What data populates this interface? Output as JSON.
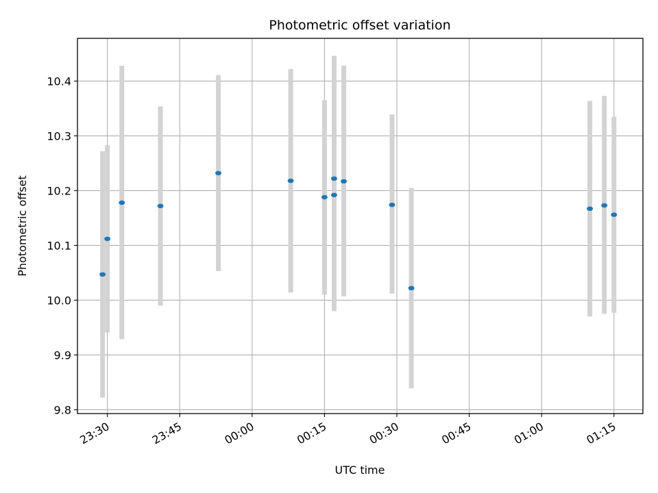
{
  "chart_data": {
    "type": "scatter",
    "title": "Photometric offset variation",
    "xlabel": "UTC time",
    "ylabel": "Photometric offset",
    "x_ticks": [
      "23:30",
      "23:45",
      "00:00",
      "00:15",
      "00:30",
      "00:45",
      "01:00",
      "01:15"
    ],
    "x_tick_minutes": [
      -30,
      -15,
      0,
      15,
      30,
      45,
      60,
      75
    ],
    "xlim_minutes": [
      -36.2,
      81.0
    ],
    "y_ticks": [
      "9.8",
      "9.9",
      "10.0",
      "10.1",
      "10.2",
      "10.3",
      "10.4"
    ],
    "y_tick_values": [
      9.8,
      9.9,
      10.0,
      10.1,
      10.2,
      10.3,
      10.4
    ],
    "ylim": [
      9.793,
      10.478
    ],
    "grid": true,
    "marker_color": "#1f77b4",
    "errorbar_color": "#d3d3d3",
    "points": [
      {
        "t": "23:29",
        "y": 10.047,
        "low": 9.822,
        "high": 10.272
      },
      {
        "t": "23:30",
        "y": 10.112,
        "low": 9.941,
        "high": 10.283
      },
      {
        "t": "23:33",
        "y": 10.178,
        "low": 9.929,
        "high": 10.428
      },
      {
        "t": "23:41",
        "y": 10.172,
        "low": 9.99,
        "high": 10.354
      },
      {
        "t": "23:53",
        "y": 10.232,
        "low": 10.053,
        "high": 10.411
      },
      {
        "t": "00:08",
        "y": 10.218,
        "low": 10.014,
        "high": 10.422
      },
      {
        "t": "00:15",
        "y": 10.188,
        "low": 10.01,
        "high": 10.365
      },
      {
        "t": "00:17",
        "y": 10.192,
        "low": 9.98,
        "high": 10.403
      },
      {
        "t": "00:17",
        "y": 10.222,
        "low": 9.998,
        "high": 10.446
      },
      {
        "t": "00:19",
        "y": 10.217,
        "low": 10.007,
        "high": 10.428
      },
      {
        "t": "00:29",
        "y": 10.174,
        "low": 10.012,
        "high": 10.339
      },
      {
        "t": "00:33",
        "y": 10.022,
        "low": 9.839,
        "high": 10.205
      },
      {
        "t": "01:10",
        "y": 10.167,
        "low": 9.97,
        "high": 10.364
      },
      {
        "t": "01:13",
        "y": 10.173,
        "low": 9.975,
        "high": 10.373
      },
      {
        "t": "01:15",
        "y": 10.156,
        "low": 9.977,
        "high": 10.335
      }
    ]
  }
}
